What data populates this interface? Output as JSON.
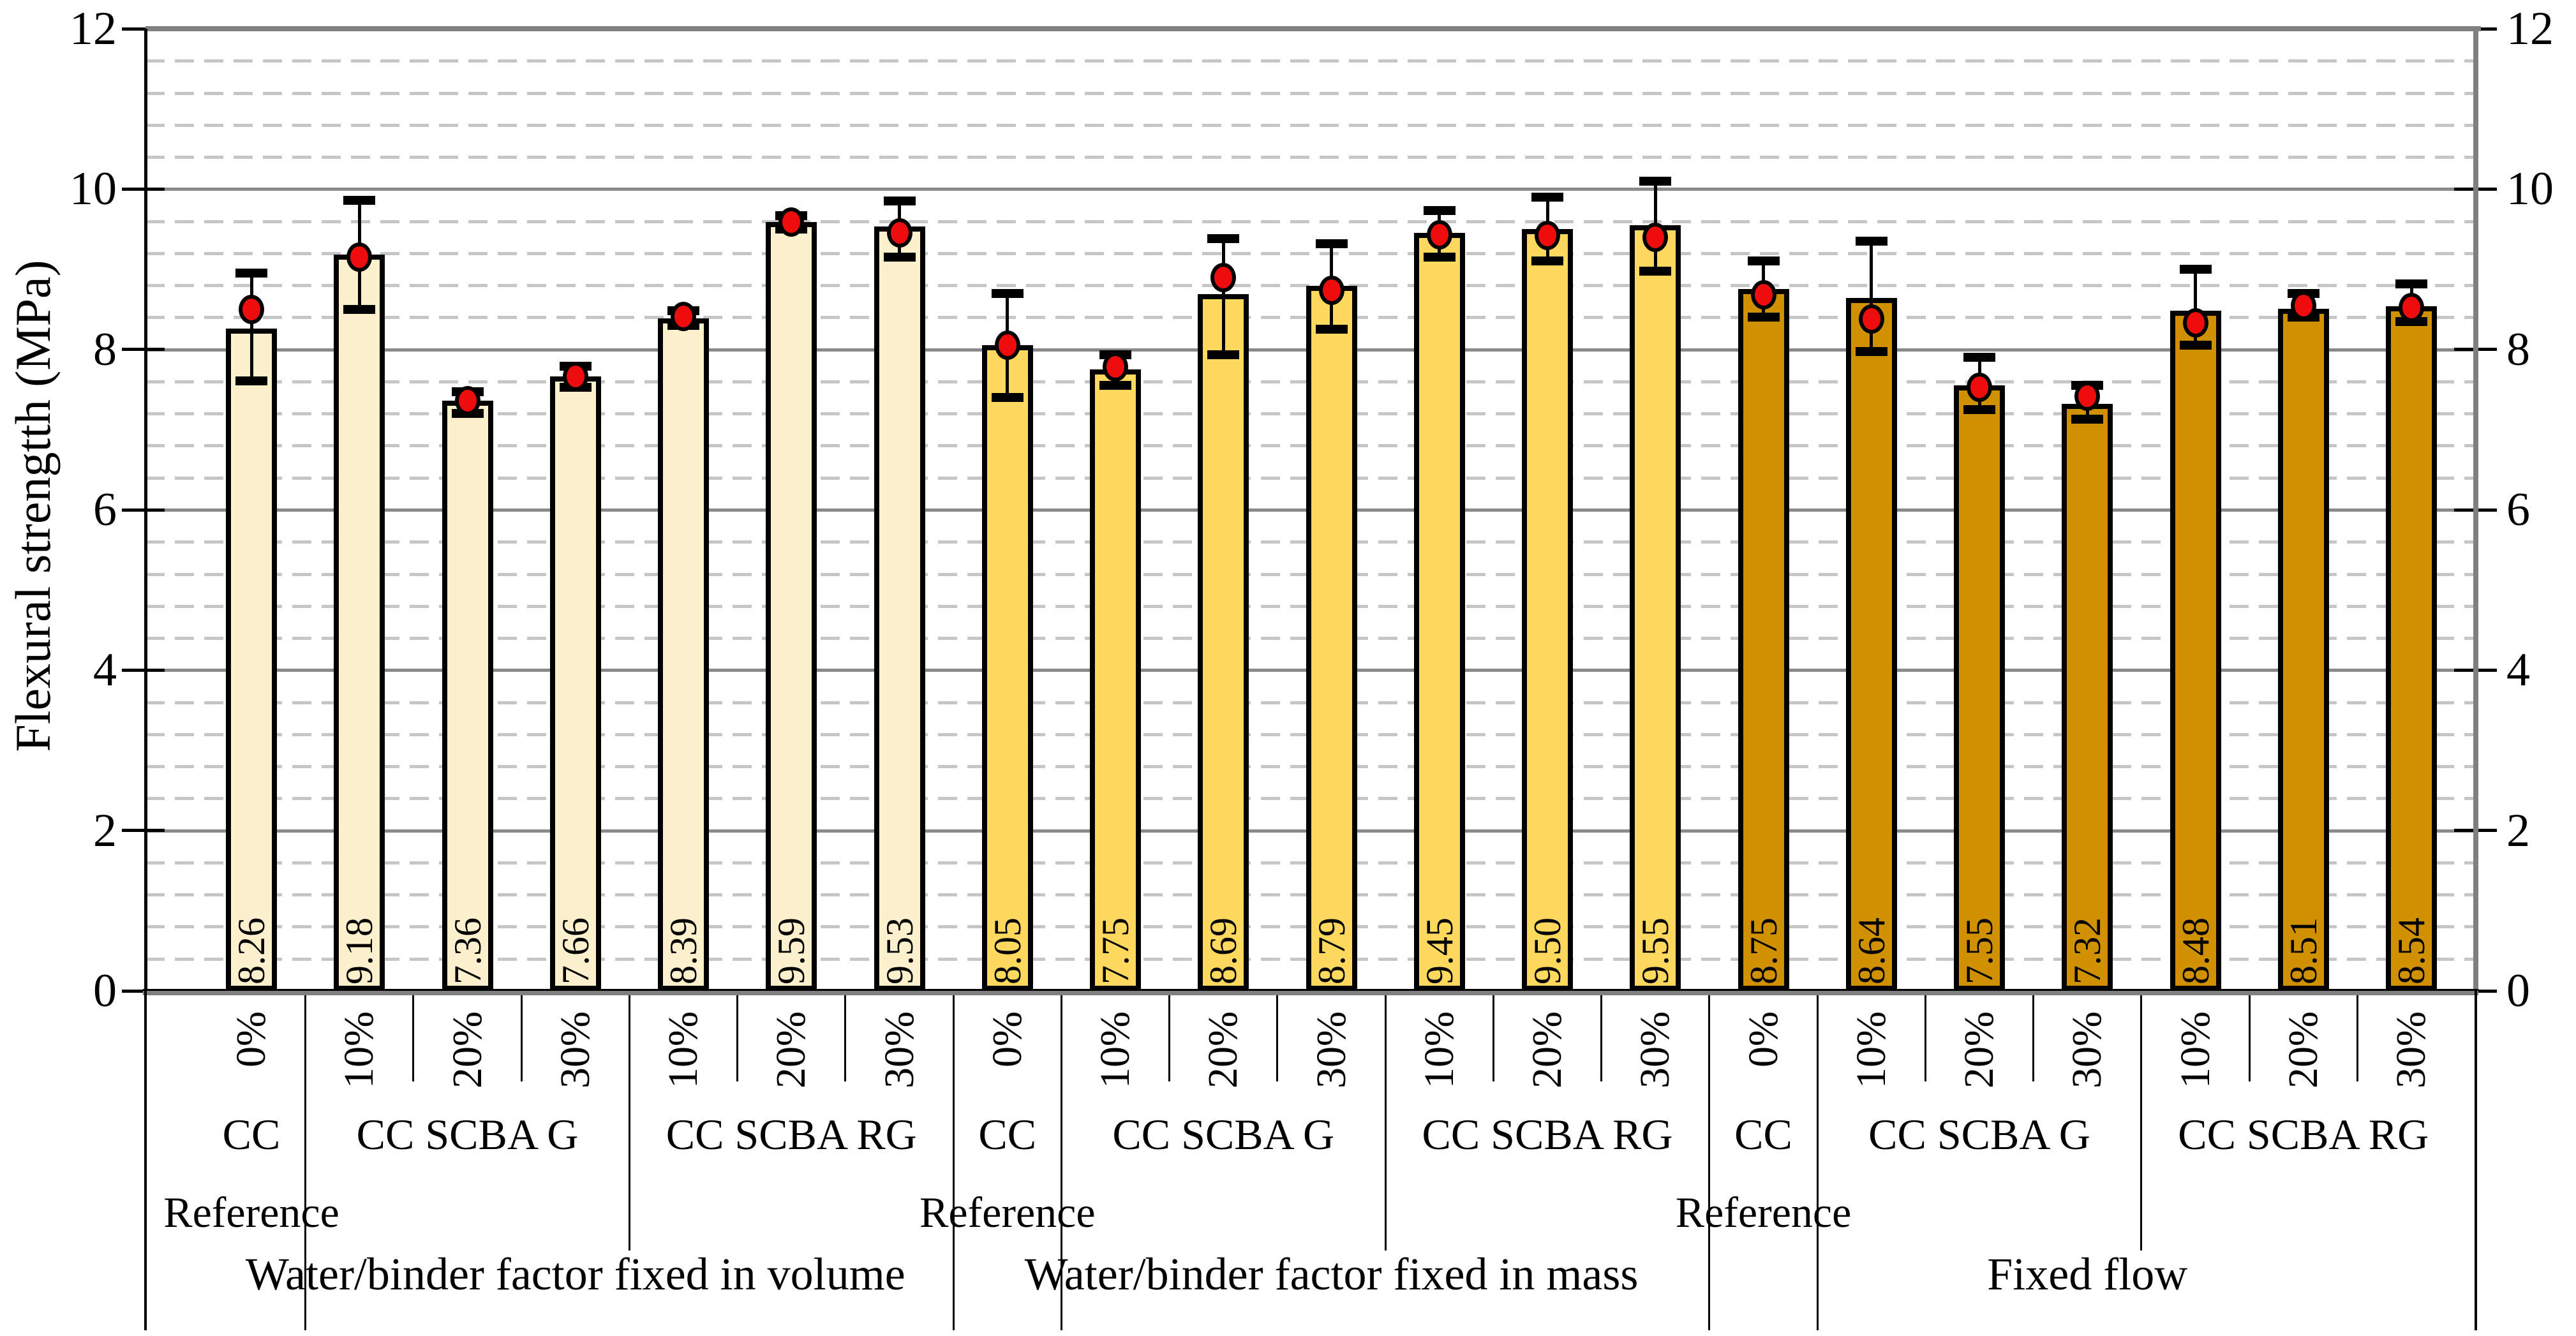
{
  "chart_data": {
    "type": "bar",
    "title": "",
    "ylabel": "Flexural strengtth (MPa)",
    "xlabel": "",
    "ylim": [
      0,
      12
    ],
    "y_major_step": 2,
    "y_minor_step": 0.4,
    "y_tick_labels": [
      "0",
      "2",
      "4",
      "6",
      "8",
      "10",
      "12"
    ],
    "axis_label_sides": [
      "left",
      "right"
    ],
    "grid": {
      "major": "solid gray",
      "minor": "dashed light gray"
    },
    "legend": "none",
    "bar_outline_color": "#000000",
    "error_bar_color": "#000000",
    "marker": {
      "shape": "ellipse",
      "fill": "#ee0c0c",
      "outline": "#000000"
    },
    "gridline_major_color": "#8a8a8a",
    "gridline_minor_color": "#c6c6c6",
    "groups": [
      {
        "label": "Water/binder factor fixed in volume",
        "bar_color": "#fcf0cd",
        "subgroups": [
          {
            "label": "CC",
            "footer": "Reference",
            "bars": [
              {
                "pct": "0%",
                "value": 8.26,
                "mean": 8.5,
                "err_high": 8.95,
                "err_low": 7.61
              }
            ]
          },
          {
            "label": "CC SCBA G",
            "footer": "",
            "bars": [
              {
                "pct": "10%",
                "value": 9.18,
                "mean": 9.15,
                "err_high": 9.86,
                "err_low": 8.5
              },
              {
                "pct": "20%",
                "value": 7.36,
                "mean": 7.36,
                "err_high": 7.47,
                "err_low": 7.2
              },
              {
                "pct": "30%",
                "value": 7.66,
                "mean": 7.66,
                "err_high": 7.79,
                "err_low": 7.53
              }
            ]
          },
          {
            "label": "CC SCBA RG",
            "footer": "",
            "bars": [
              {
                "pct": "10%",
                "value": 8.39,
                "mean": 8.41,
                "err_high": 8.48,
                "err_low": 8.3
              },
              {
                "pct": "20%",
                "value": 9.59,
                "mean": 9.59,
                "err_high": 9.67,
                "err_low": 9.5
              },
              {
                "pct": "30%",
                "value": 9.53,
                "mean": 9.45,
                "err_high": 9.85,
                "err_low": 9.15
              }
            ]
          }
        ]
      },
      {
        "label": "Water/binder factor fixed in mass",
        "bar_color": "#ffd95e",
        "subgroups": [
          {
            "label": "CC",
            "footer": "Reference",
            "bars": [
              {
                "pct": "0%",
                "value": 8.05,
                "mean": 8.05,
                "err_high": 8.7,
                "err_low": 7.4
              }
            ]
          },
          {
            "label": "CC SCBA G",
            "footer": "",
            "bars": [
              {
                "pct": "10%",
                "value": 7.75,
                "mean": 7.78,
                "err_high": 7.93,
                "err_low": 7.55
              },
              {
                "pct": "20%",
                "value": 8.69,
                "mean": 8.9,
                "err_high": 9.38,
                "err_low": 7.93
              },
              {
                "pct": "30%",
                "value": 8.79,
                "mean": 8.74,
                "err_high": 9.32,
                "err_low": 8.25
              }
            ]
          },
          {
            "label": "CC SCBA RG",
            "footer": "",
            "bars": [
              {
                "pct": "10%",
                "value": 9.45,
                "mean": 9.43,
                "err_high": 9.73,
                "err_low": 9.15
              },
              {
                "pct": "20%",
                "value": 9.5,
                "mean": 9.42,
                "err_high": 9.9,
                "err_low": 9.1
              },
              {
                "pct": "30%",
                "value": 9.55,
                "mean": 9.4,
                "err_high": 10.1,
                "err_low": 8.98
              }
            ]
          }
        ]
      },
      {
        "label": "Fixed flow",
        "bar_color": "#cf9100",
        "subgroups": [
          {
            "label": "CC",
            "footer": "Reference",
            "bars": [
              {
                "pct": "0%",
                "value": 8.75,
                "mean": 8.68,
                "err_high": 9.1,
                "err_low": 8.4
              }
            ]
          },
          {
            "label": "CC SCBA G",
            "footer": "",
            "bars": [
              {
                "pct": "10%",
                "value": 8.64,
                "mean": 8.38,
                "err_high": 9.35,
                "err_low": 7.97
              },
              {
                "pct": "20%",
                "value": 7.55,
                "mean": 7.53,
                "err_high": 7.9,
                "err_low": 7.25
              },
              {
                "pct": "30%",
                "value": 7.32,
                "mean": 7.42,
                "err_high": 7.55,
                "err_low": 7.13
              }
            ]
          },
          {
            "label": "CC SCBA RG",
            "footer": "",
            "bars": [
              {
                "pct": "10%",
                "value": 8.48,
                "mean": 8.33,
                "err_high": 9.0,
                "err_low": 8.05
              },
              {
                "pct": "20%",
                "value": 8.51,
                "mean": 8.55,
                "err_high": 8.7,
                "err_low": 8.4
              },
              {
                "pct": "30%",
                "value": 8.54,
                "mean": 8.52,
                "err_high": 8.82,
                "err_low": 8.35
              }
            ]
          }
        ]
      }
    ]
  }
}
